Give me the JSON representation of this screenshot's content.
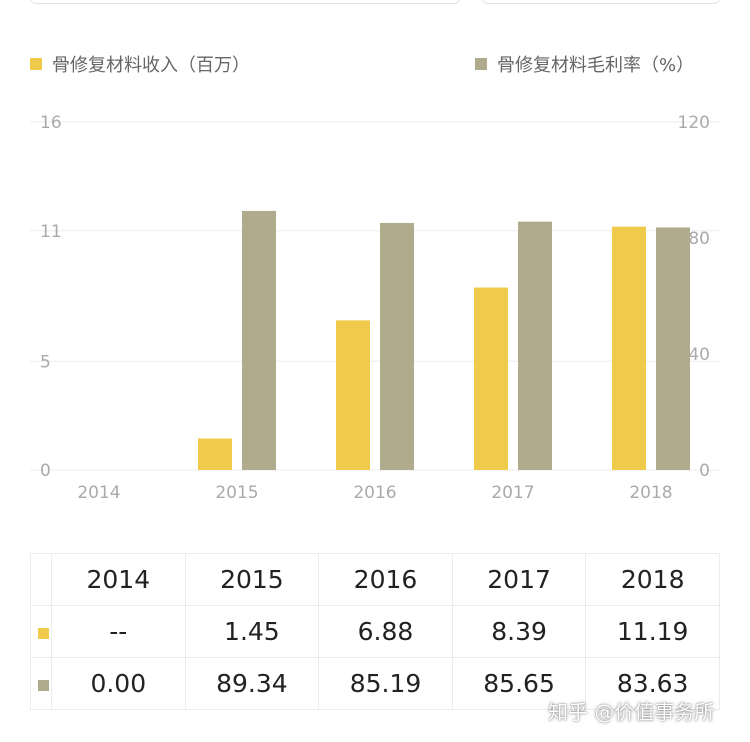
{
  "colors": {
    "revenue": "#f0cb4b",
    "margin": "#b0ab8d",
    "grid": "#eeeeee",
    "tick": "#aaaaaa"
  },
  "legend": {
    "revenue_label": "骨修复材料收入（百万）",
    "margin_label": "骨修复材料毛利率（%）"
  },
  "chart_data": {
    "type": "bar",
    "categories": [
      "2014",
      "2015",
      "2016",
      "2017",
      "2018"
    ],
    "series": [
      {
        "name": "骨修复材料收入（百万）",
        "axis": "left",
        "values": [
          0,
          1.45,
          6.88,
          8.39,
          11.19
        ]
      },
      {
        "name": "骨修复材料毛利率（%）",
        "axis": "right",
        "values": [
          0.0,
          89.34,
          85.19,
          85.65,
          83.63
        ]
      }
    ],
    "y_left": {
      "range": [
        0,
        16
      ],
      "ticks": [
        "0",
        "5",
        "11",
        "16"
      ]
    },
    "y_right": {
      "range": [
        0,
        120
      ],
      "ticks": [
        "0",
        "40",
        "80",
        "120"
      ]
    },
    "grid": true,
    "legend_position": "top"
  },
  "table": {
    "header": [
      "2014",
      "2015",
      "2016",
      "2017",
      "2018"
    ],
    "rows": [
      {
        "key": "revenue",
        "cells": [
          "--",
          "1.45",
          "6.88",
          "8.39",
          "11.19"
        ]
      },
      {
        "key": "margin",
        "cells": [
          "0.00",
          "89.34",
          "85.19",
          "85.65",
          "83.63"
        ]
      }
    ]
  },
  "watermark": "知乎 @价值事务所"
}
